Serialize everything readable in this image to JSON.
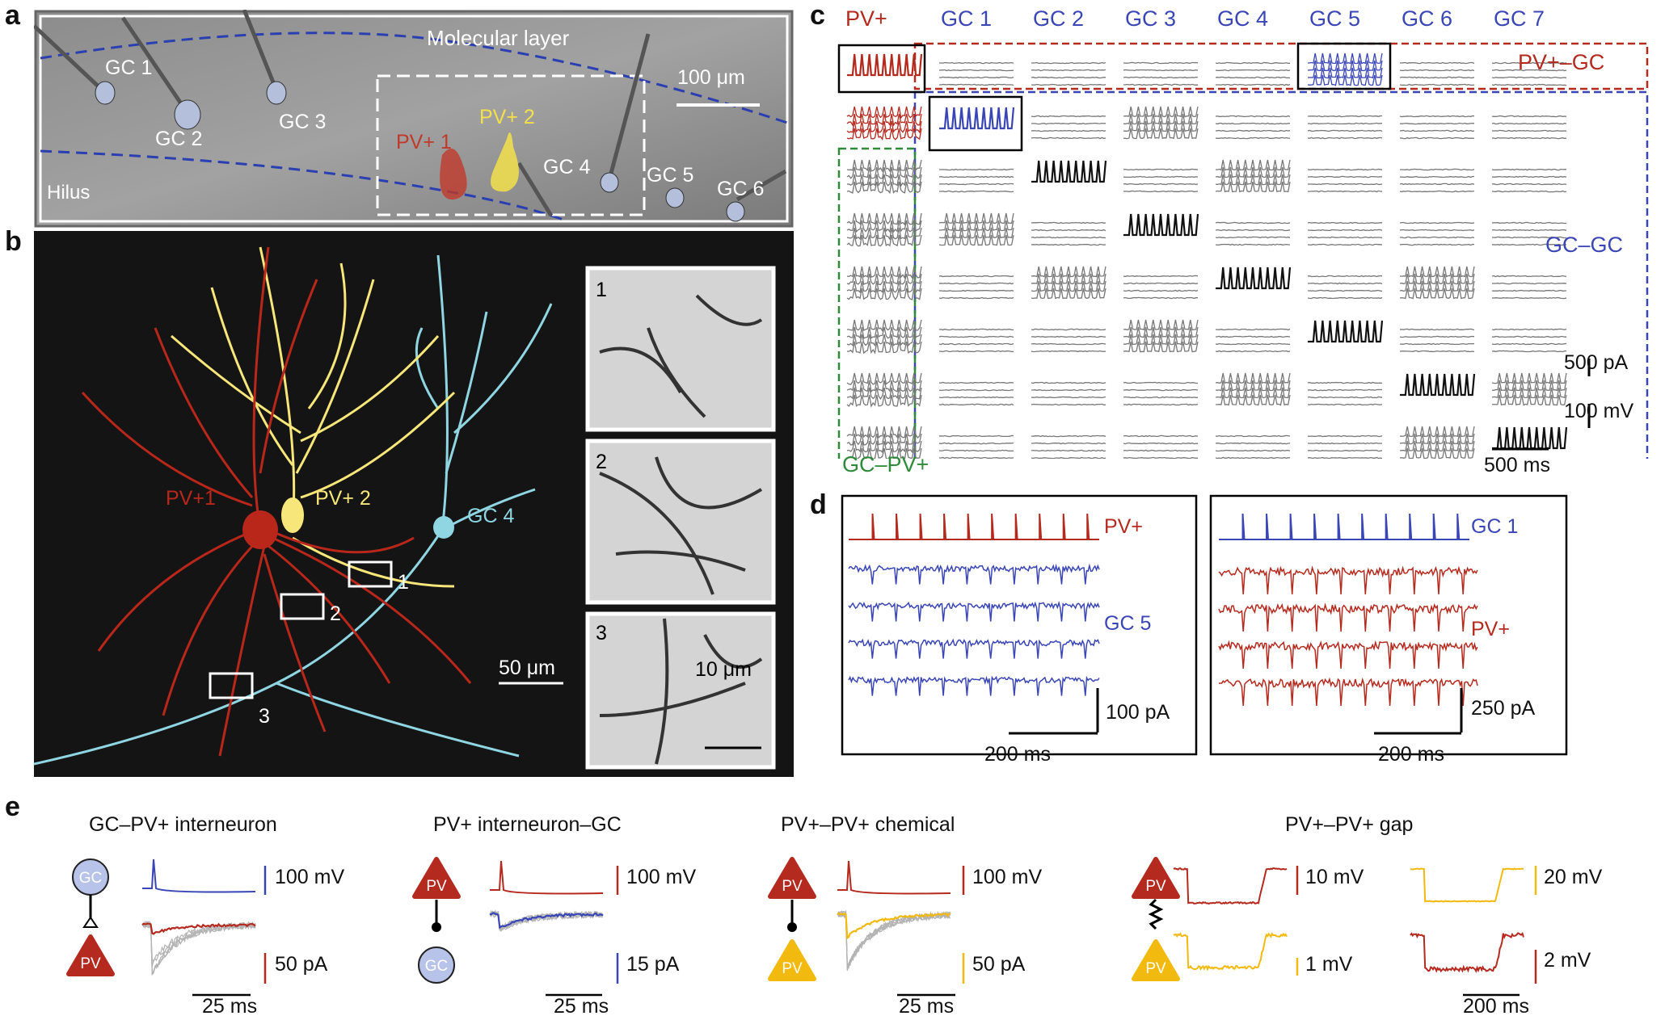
{
  "panels": {
    "a": "a",
    "b": "b",
    "c": "c",
    "d": "d",
    "e": "e"
  },
  "panel_a": {
    "regions": {
      "molecular": "Molecular layer",
      "hilus": "Hilus"
    },
    "scale": "100 μm",
    "cells": {
      "gc1": "GC 1",
      "gc2": "GC 2",
      "gc3": "GC 3",
      "gc4": "GC 4",
      "gc5": "GC 5",
      "gc6": "GC 6",
      "pv1": "PV+ 1",
      "pv2": "PV+ 2"
    },
    "colors": {
      "pv1": "#c0392b",
      "pv2": "#f3e04b",
      "boundary": "#2b3fb0"
    }
  },
  "panel_b": {
    "cells": {
      "pv1": "PV+1",
      "pv2": "PV+ 2",
      "gc4": "GC 4"
    },
    "boxes": {
      "b1": "1",
      "b2": "2",
      "b3": "3"
    },
    "scale": "50 μm",
    "inset_scale": "10 μm",
    "colors": {
      "pv1": "#b9271b",
      "pv2": "#f7e67a",
      "gc4": "#8fd6e2",
      "background": "#141414"
    }
  },
  "panel_c": {
    "columns": [
      "PV+",
      "GC 1",
      "GC 2",
      "GC 3",
      "GC 4",
      "GC 5",
      "GC 6",
      "GC 7"
    ],
    "groups": {
      "pv_gc": "PV+–GC",
      "gc_gc": "GC–GC",
      "gc_pv": "GC–PV+"
    },
    "scales": {
      "current": "500 pA",
      "voltage": "100 mV",
      "time": "500 ms"
    },
    "colors": {
      "pv": "#b52a1e",
      "gc": "#3a46b5",
      "gcpv": "#2e8b3a",
      "trace": "#777777"
    }
  },
  "panel_d": {
    "left": {
      "pre": "PV+",
      "post": "GC 5",
      "current": "100 pA",
      "time": "200 ms"
    },
    "right": {
      "pre": "GC 1",
      "post": "PV+",
      "current": "250 pA",
      "time": "200 ms"
    }
  },
  "panel_e": {
    "titles": {
      "e1": "GC–PV+ interneuron",
      "e2": "PV+ interneuron–GC",
      "e3": "PV+–PV+ chemical",
      "e4": "PV+–PV+ gap"
    },
    "nodes": {
      "gc": "GC",
      "pv": "PV"
    },
    "e1": {
      "v": "100 mV",
      "i": "50 pA",
      "t": "25 ms"
    },
    "e2": {
      "v": "100 mV",
      "i": "15 pA",
      "t": "25 ms"
    },
    "e3": {
      "v": "100 mV",
      "i": "50 pA",
      "t": "25 ms"
    },
    "e4": {
      "v1": "10 mV",
      "v2": "1 mV",
      "v3": "20 mV",
      "v4": "2 mV",
      "t": "200 ms"
    },
    "colors": {
      "pv": "#b52a1e",
      "gc": "#3a46b5",
      "gc_fill": "#b8c3ea",
      "pv2": "#f2b90f",
      "grey": "#b3b3b3"
    }
  }
}
